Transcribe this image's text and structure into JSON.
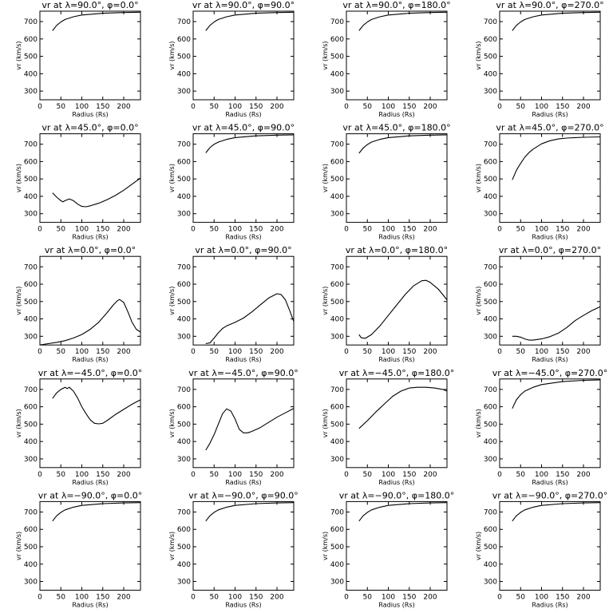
{
  "chart_data": [
    {
      "type": "line",
      "title": "vr at λ=90.0°, φ=0.0°",
      "xlabel": "Radius (Rs)",
      "ylabel": "vr (km/s)",
      "xlim": [
        0,
        240
      ],
      "ylim": [
        250,
        760
      ],
      "xticks": [
        0,
        50,
        100,
        150,
        200
      ],
      "yticks": [
        300,
        400,
        500,
        600,
        700
      ],
      "x": [
        30,
        40,
        50,
        60,
        80,
        100,
        150,
        200,
        240
      ],
      "y": [
        648,
        678,
        698,
        712,
        728,
        738,
        748,
        752,
        754
      ]
    },
    {
      "type": "line",
      "title": "vr at λ=90.0°, φ=90.0°",
      "xlabel": "Radius (Rs)",
      "ylabel": "vr (km/s)",
      "xlim": [
        0,
        240
      ],
      "ylim": [
        250,
        760
      ],
      "xticks": [
        0,
        50,
        100,
        150,
        200
      ],
      "yticks": [
        300,
        400,
        500,
        600,
        700
      ],
      "x": [
        30,
        40,
        50,
        60,
        80,
        100,
        150,
        200,
        240
      ],
      "y": [
        648,
        678,
        698,
        712,
        728,
        738,
        748,
        752,
        754
      ]
    },
    {
      "type": "line",
      "title": "vr at λ=90.0°, φ=180.0°",
      "xlabel": "Radius (Rs)",
      "ylabel": "vr (km/s)",
      "xlim": [
        0,
        240
      ],
      "ylim": [
        250,
        760
      ],
      "xticks": [
        0,
        50,
        100,
        150,
        200
      ],
      "yticks": [
        300,
        400,
        500,
        600,
        700
      ],
      "x": [
        30,
        40,
        50,
        60,
        80,
        100,
        150,
        200,
        240
      ],
      "y": [
        648,
        678,
        698,
        712,
        728,
        738,
        748,
        752,
        754
      ]
    },
    {
      "type": "line",
      "title": "vr at λ=90.0°, φ=270.0°",
      "xlabel": "Radius (Rs)",
      "ylabel": "vr (km/s)",
      "xlim": [
        0,
        240
      ],
      "ylim": [
        250,
        760
      ],
      "xticks": [
        0,
        50,
        100,
        150,
        200
      ],
      "yticks": [
        300,
        400,
        500,
        600,
        700
      ],
      "x": [
        30,
        40,
        50,
        60,
        80,
        100,
        150,
        200,
        240
      ],
      "y": [
        648,
        678,
        698,
        712,
        728,
        738,
        748,
        752,
        754
      ]
    },
    {
      "type": "line",
      "title": "vr at λ=45.0°, φ=0.0°",
      "xlabel": "Radius (Rs)",
      "ylabel": "vr (km/s)",
      "xlim": [
        0,
        240
      ],
      "ylim": [
        250,
        760
      ],
      "xticks": [
        0,
        50,
        100,
        150,
        200
      ],
      "yticks": [
        300,
        400,
        500,
        600,
        700
      ],
      "x": [
        30,
        40,
        50,
        55,
        60,
        70,
        80,
        90,
        100,
        110,
        120,
        140,
        160,
        180,
        200,
        220,
        240
      ],
      "y": [
        420,
        395,
        375,
        368,
        375,
        385,
        375,
        355,
        342,
        340,
        345,
        360,
        380,
        405,
        435,
        470,
        505
      ]
    },
    {
      "type": "line",
      "title": "vr at λ=45.0°, φ=90.0°",
      "xlabel": "Radius (Rs)",
      "ylabel": "vr (km/s)",
      "xlim": [
        0,
        240
      ],
      "ylim": [
        250,
        760
      ],
      "xticks": [
        0,
        50,
        100,
        150,
        200
      ],
      "yticks": [
        300,
        400,
        500,
        600,
        700
      ],
      "x": [
        30,
        40,
        50,
        60,
        80,
        100,
        150,
        200,
        240
      ],
      "y": [
        650,
        680,
        700,
        712,
        728,
        738,
        748,
        752,
        754
      ]
    },
    {
      "type": "line",
      "title": "vr at λ=45.0°, φ=180.0°",
      "xlabel": "Radius (Rs)",
      "ylabel": "vr (km/s)",
      "xlim": [
        0,
        240
      ],
      "ylim": [
        250,
        760
      ],
      "xticks": [
        0,
        50,
        100,
        150,
        200
      ],
      "yticks": [
        300,
        400,
        500,
        600,
        700
      ],
      "x": [
        30,
        40,
        50,
        60,
        80,
        100,
        150,
        200,
        240
      ],
      "y": [
        648,
        678,
        698,
        712,
        728,
        738,
        748,
        752,
        754
      ]
    },
    {
      "type": "line",
      "title": "vr at λ=45.0°, φ=270.0°",
      "xlabel": "Radius (Rs)",
      "ylabel": "vr (km/s)",
      "xlim": [
        0,
        240
      ],
      "ylim": [
        250,
        760
      ],
      "xticks": [
        0,
        50,
        100,
        150,
        200
      ],
      "yticks": [
        300,
        400,
        500,
        600,
        700
      ],
      "x": [
        30,
        40,
        50,
        60,
        70,
        80,
        100,
        120,
        140,
        160,
        180,
        200,
        240
      ],
      "y": [
        495,
        550,
        590,
        625,
        652,
        672,
        702,
        720,
        730,
        735,
        738,
        740,
        742
      ]
    },
    {
      "type": "line",
      "title": "vr at λ=0.0°, φ=0.0°",
      "xlabel": "Radius (Rs)",
      "ylabel": "vr (km/s)",
      "xlim": [
        0,
        240
      ],
      "ylim": [
        250,
        760
      ],
      "xticks": [
        0,
        50,
        100,
        150,
        200
      ],
      "yticks": [
        300,
        400,
        500,
        600,
        700
      ],
      "x": [
        0,
        20,
        40,
        60,
        80,
        100,
        120,
        140,
        160,
        175,
        185,
        190,
        200,
        210,
        220,
        230,
        240
      ],
      "y": [
        250,
        258,
        265,
        275,
        290,
        310,
        340,
        380,
        435,
        480,
        505,
        512,
        495,
        440,
        380,
        340,
        325
      ]
    },
    {
      "type": "line",
      "title": "vr at λ=0.0°, φ=90.0°",
      "xlabel": "Radius (Rs)",
      "ylabel": "vr (km/s)",
      "xlim": [
        0,
        240
      ],
      "ylim": [
        250,
        760
      ],
      "xticks": [
        0,
        50,
        100,
        150,
        200
      ],
      "yticks": [
        300,
        400,
        500,
        600,
        700
      ],
      "x": [
        30,
        40,
        50,
        60,
        70,
        80,
        100,
        120,
        140,
        160,
        180,
        200,
        210,
        220,
        230,
        240
      ],
      "y": [
        258,
        262,
        290,
        320,
        345,
        360,
        380,
        405,
        440,
        480,
        520,
        545,
        540,
        510,
        450,
        385
      ]
    },
    {
      "type": "line",
      "title": "vr at λ=0.0°, φ=180.0°",
      "xlabel": "Radius (Rs)",
      "ylabel": "vr (km/s)",
      "xlim": [
        0,
        240
      ],
      "ylim": [
        250,
        760
      ],
      "xticks": [
        0,
        50,
        100,
        150,
        200
      ],
      "yticks": [
        300,
        400,
        500,
        600,
        700
      ],
      "x": [
        30,
        35,
        45,
        60,
        80,
        100,
        120,
        140,
        160,
        180,
        190,
        200,
        220,
        240
      ],
      "y": [
        310,
        292,
        288,
        310,
        360,
        420,
        480,
        540,
        590,
        620,
        622,
        610,
        570,
        510
      ]
    },
    {
      "type": "line",
      "title": "vr at λ=0.0°, φ=270.0°",
      "xlabel": "Radius (Rs)",
      "ylabel": "vr (km/s)",
      "xlim": [
        0,
        240
      ],
      "ylim": [
        250,
        760
      ],
      "xticks": [
        0,
        50,
        100,
        150,
        200
      ],
      "yticks": [
        300,
        400,
        500,
        600,
        700
      ],
      "x": [
        30,
        40,
        50,
        60,
        70,
        80,
        100,
        120,
        140,
        160,
        180,
        200,
        220,
        240
      ],
      "y": [
        300,
        300,
        295,
        285,
        278,
        278,
        285,
        298,
        318,
        350,
        390,
        420,
        448,
        470
      ]
    },
    {
      "type": "line",
      "title": "vr at λ=−45.0°, φ=0.0°",
      "xlabel": "Radius (Rs)",
      "ylabel": "vr (km/s)",
      "xlim": [
        0,
        240
      ],
      "ylim": [
        250,
        760
      ],
      "xticks": [
        0,
        50,
        100,
        150,
        200
      ],
      "yticks": [
        300,
        400,
        500,
        600,
        700
      ],
      "x": [
        30,
        40,
        50,
        60,
        65,
        70,
        80,
        90,
        100,
        110,
        120,
        130,
        140,
        150,
        160,
        180,
        200,
        220,
        240
      ],
      "y": [
        648,
        680,
        700,
        712,
        705,
        712,
        690,
        650,
        600,
        560,
        525,
        505,
        502,
        505,
        520,
        555,
        585,
        615,
        640
      ]
    },
    {
      "type": "line",
      "title": "vr at λ=−45.0°, φ=90.0°",
      "xlabel": "Radius (Rs)",
      "ylabel": "vr (km/s)",
      "xlim": [
        0,
        240
      ],
      "ylim": [
        250,
        760
      ],
      "xticks": [
        0,
        50,
        100,
        150,
        200
      ],
      "yticks": [
        300,
        400,
        500,
        600,
        700
      ],
      "x": [
        30,
        40,
        50,
        60,
        70,
        80,
        90,
        100,
        110,
        120,
        130,
        140,
        160,
        180,
        200,
        220,
        240
      ],
      "y": [
        350,
        390,
        440,
        500,
        560,
        588,
        575,
        530,
        470,
        450,
        450,
        458,
        480,
        510,
        540,
        565,
        590
      ]
    },
    {
      "type": "line",
      "title": "vr at λ=−45.0°, φ=180.0°",
      "xlabel": "Radius (Rs)",
      "ylabel": "vr (km/s)",
      "xlim": [
        0,
        240
      ],
      "ylim": [
        250,
        760
      ],
      "xticks": [
        0,
        50,
        100,
        150,
        200
      ],
      "yticks": [
        300,
        400,
        500,
        600,
        700
      ],
      "x": [
        30,
        50,
        70,
        90,
        110,
        130,
        150,
        170,
        190,
        210,
        230,
        240
      ],
      "y": [
        475,
        520,
        570,
        615,
        660,
        690,
        708,
        712,
        712,
        708,
        700,
        690
      ]
    },
    {
      "type": "line",
      "title": "vr at λ=−45.0°, φ=270.0°",
      "xlabel": "Radius (Rs)",
      "ylabel": "vr (km/s)",
      "xlim": [
        0,
        240
      ],
      "ylim": [
        250,
        760
      ],
      "xticks": [
        0,
        50,
        100,
        150,
        200
      ],
      "yticks": [
        300,
        400,
        500,
        600,
        700
      ],
      "x": [
        30,
        40,
        50,
        60,
        80,
        100,
        150,
        200,
        240
      ],
      "y": [
        590,
        640,
        670,
        690,
        712,
        728,
        745,
        752,
        755
      ]
    },
    {
      "type": "line",
      "title": "vr at λ=−90.0°, φ=0.0°",
      "xlabel": "Radius (Rs)",
      "ylabel": "vr (km/s)",
      "xlim": [
        0,
        240
      ],
      "ylim": [
        250,
        760
      ],
      "xticks": [
        0,
        50,
        100,
        150,
        200
      ],
      "yticks": [
        300,
        400,
        500,
        600,
        700
      ],
      "x": [
        30,
        40,
        50,
        60,
        80,
        100,
        150,
        200,
        240
      ],
      "y": [
        648,
        678,
        698,
        712,
        728,
        738,
        748,
        752,
        754
      ]
    },
    {
      "type": "line",
      "title": "vr at λ=−90.0°, φ=90.0°",
      "xlabel": "Radius (Rs)",
      "ylabel": "vr (km/s)",
      "xlim": [
        0,
        240
      ],
      "ylim": [
        250,
        760
      ],
      "xticks": [
        0,
        50,
        100,
        150,
        200
      ],
      "yticks": [
        300,
        400,
        500,
        600,
        700
      ],
      "x": [
        30,
        40,
        50,
        60,
        80,
        100,
        150,
        200,
        240
      ],
      "y": [
        648,
        678,
        698,
        712,
        728,
        738,
        748,
        752,
        754
      ]
    },
    {
      "type": "line",
      "title": "vr at λ=−90.0°, φ=180.0°",
      "xlabel": "Radius (Rs)",
      "ylabel": "vr (km/s)",
      "xlim": [
        0,
        240
      ],
      "ylim": [
        250,
        760
      ],
      "xticks": [
        0,
        50,
        100,
        150,
        200
      ],
      "yticks": [
        300,
        400,
        500,
        600,
        700
      ],
      "x": [
        30,
        40,
        50,
        60,
        80,
        100,
        150,
        200,
        240
      ],
      "y": [
        648,
        678,
        698,
        712,
        728,
        738,
        748,
        752,
        754
      ]
    },
    {
      "type": "line",
      "title": "vr at λ=−90.0°, φ=270.0°",
      "xlabel": "Radius (Rs)",
      "ylabel": "vr (km/s)",
      "xlim": [
        0,
        240
      ],
      "ylim": [
        250,
        760
      ],
      "xticks": [
        0,
        50,
        100,
        150,
        200
      ],
      "yticks": [
        300,
        400,
        500,
        600,
        700
      ],
      "x": [
        30,
        40,
        50,
        60,
        80,
        100,
        150,
        200,
        240
      ],
      "y": [
        648,
        678,
        698,
        712,
        728,
        738,
        748,
        752,
        754
      ]
    }
  ]
}
